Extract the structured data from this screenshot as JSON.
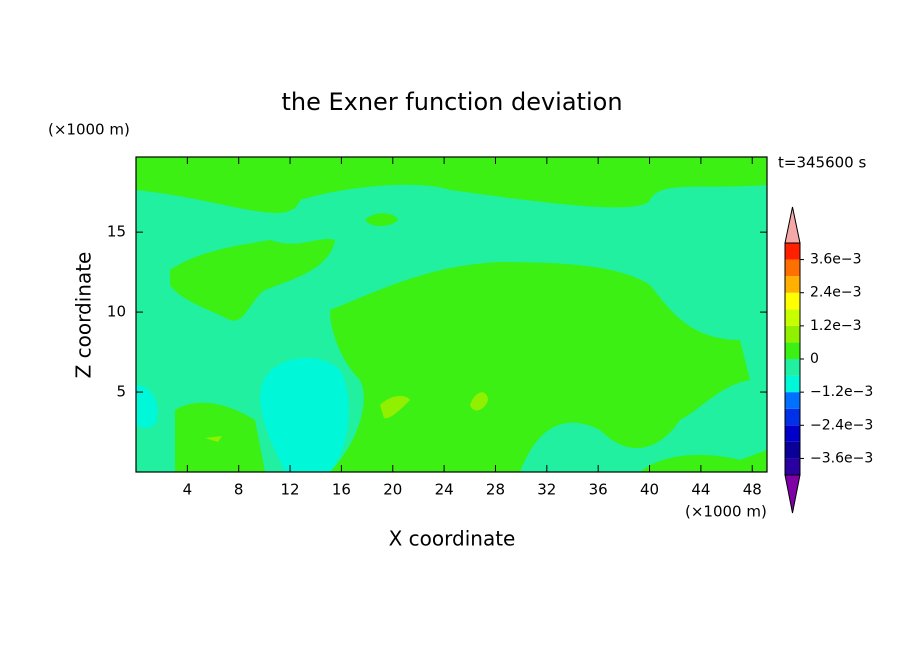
{
  "chart_data": {
    "type": "contour",
    "title": "the Exner function deviation",
    "x_label": "X coordinate",
    "y_label": "Z coordinate",
    "x_unit": "(×1000 m)",
    "y_unit": "(×1000 m)",
    "annotation": "t=345600 s",
    "xlim": [
      0,
      49.15
    ],
    "ylim": [
      0,
      19.7
    ],
    "xticks": [
      4,
      8,
      12,
      16,
      20,
      24,
      28,
      32,
      36,
      40,
      44,
      48
    ],
    "yticks": [
      5,
      10,
      15
    ],
    "colorbar": {
      "levels": [
        -0.0042,
        -0.0036,
        -0.003,
        -0.0024,
        -0.0018,
        -0.0012,
        -0.0006,
        0,
        0.0006,
        0.0012,
        0.0018,
        0.0024,
        0.003,
        0.0036,
        0.0042
      ],
      "colors": [
        "#2a00a0",
        "#0a0098",
        "#0000c8",
        "#0030e8",
        "#0070ff",
        "#00f8d8",
        "#20f0a0",
        "#3cf014",
        "#90f000",
        "#c8ff00",
        "#ffff00",
        "#ffb000",
        "#ff7000",
        "#ff2000"
      ],
      "under_color": "#8000a8",
      "over_color": "#f4a8a8",
      "ticks": [
        {
          "value": -0.0036,
          "label": "−3.6e−3"
        },
        {
          "value": -0.0024,
          "label": "−2.4e−3"
        },
        {
          "value": -0.0012,
          "label": "−1.2e−3"
        },
        0,
        {
          "value": 0.0012,
          "label": "1.2e−3"
        },
        {
          "value": 0.0024,
          "label": "2.4e−3"
        },
        {
          "value": 0.0036,
          "label": "3.6e−3"
        }
      ]
    }
  }
}
